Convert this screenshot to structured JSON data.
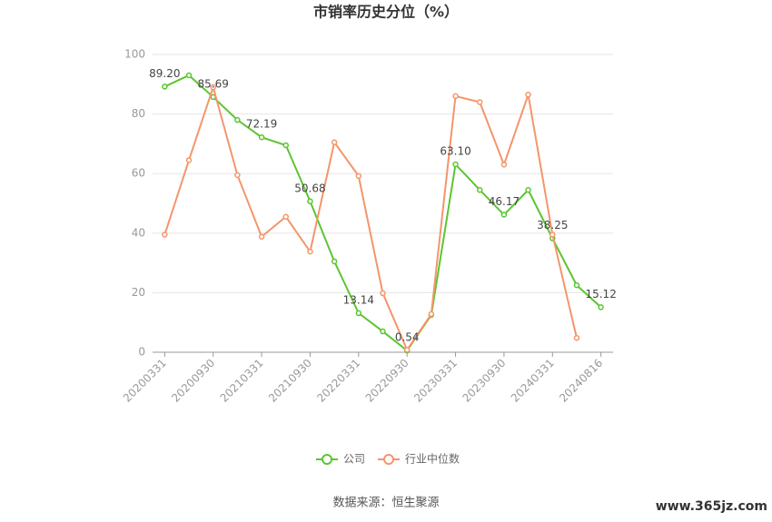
{
  "chart_data": {
    "type": "line",
    "title": "市销率历史分位（%）",
    "categories": [
      "20200331",
      null,
      "20200930",
      null,
      "20210331",
      null,
      "20210930",
      null,
      "20220331",
      null,
      "20220930",
      null,
      "20230331",
      null,
      "20230930",
      null,
      "20240331",
      null,
      "20240816"
    ],
    "series": [
      {
        "name": "公司",
        "color": "#5cc531",
        "values": [
          89.2,
          93,
          85.69,
          78,
          72.19,
          69.5,
          50.68,
          30.5,
          13.14,
          7,
          0.54,
          12.5,
          63.1,
          54.5,
          46.17,
          54.5,
          38.25,
          22.5,
          15.12
        ],
        "value_labels": [
          "89.20",
          null,
          "85.69",
          null,
          "72.19",
          null,
          "50.68",
          null,
          "13.14",
          null,
          "0.54",
          null,
          "63.10",
          null,
          "46.17",
          null,
          "38.25",
          null,
          "15.12"
        ]
      },
      {
        "name": "行业中位数",
        "color": "#f4956b",
        "values": [
          39.5,
          64.5,
          89,
          59.5,
          38.8,
          45.5,
          33.8,
          70.5,
          59.2,
          19.8,
          0.8,
          12.8,
          86,
          84,
          63,
          86.5,
          39.5,
          4.8,
          null
        ]
      }
    ],
    "ylim": [
      0,
      100
    ],
    "yticks": [
      0,
      20,
      40,
      60,
      80,
      100
    ],
    "grid": true,
    "legend": "bottom",
    "source": "数据来源：恒生聚源",
    "watermark": "www.365jz.com"
  }
}
